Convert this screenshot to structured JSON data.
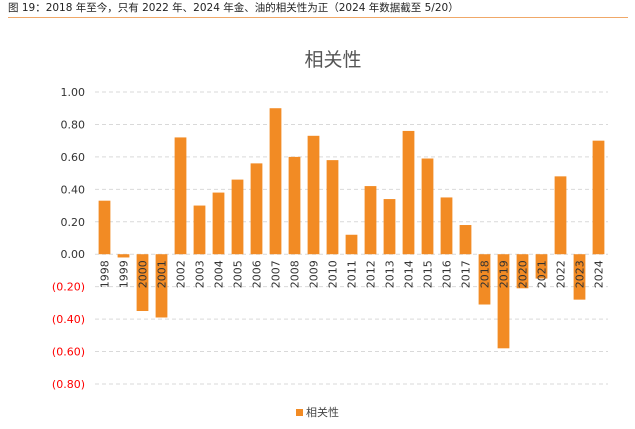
{
  "caption": "图 19：2018 年至今，只有 2022 年、2024 年金、油的相关性为正（2024 年数据截至 5/20）",
  "colors": {
    "bar": "#f28b24",
    "negative_tick": "#ff0000",
    "grid": "#d9d9d9",
    "caption_rule": "#f0a868"
  },
  "chart_data": {
    "type": "bar",
    "title": "相关性",
    "xlabel": "",
    "ylabel": "",
    "ylim": [
      -0.8,
      1.0
    ],
    "yticks": [
      1.0,
      0.8,
      0.6,
      0.4,
      0.2,
      0.0,
      -0.2,
      -0.4,
      -0.6,
      -0.8
    ],
    "ytick_labels": [
      "1.00",
      "0.80",
      "0.60",
      "0.40",
      "0.20",
      "0.00",
      "(0.20)",
      "(0.40)",
      "(0.60)",
      "(0.80)"
    ],
    "grid": true,
    "legend_position": "bottom",
    "categories": [
      "1998",
      "1999",
      "2000",
      "2001",
      "2002",
      "2003",
      "2004",
      "2005",
      "2006",
      "2007",
      "2008",
      "2009",
      "2010",
      "2011",
      "2012",
      "2013",
      "2014",
      "2015",
      "2016",
      "2017",
      "2018",
      "2019",
      "2020",
      "2021",
      "2022",
      "2023",
      "2024"
    ],
    "series": [
      {
        "name": "相关性",
        "values": [
          0.33,
          -0.02,
          -0.35,
          -0.39,
          0.72,
          0.3,
          0.38,
          0.46,
          0.56,
          0.9,
          0.6,
          0.73,
          0.58,
          0.12,
          0.42,
          0.34,
          0.76,
          0.59,
          0.35,
          0.18,
          -0.31,
          -0.58,
          -0.21,
          -0.15,
          0.48,
          -0.28,
          0.7
        ]
      }
    ]
  }
}
